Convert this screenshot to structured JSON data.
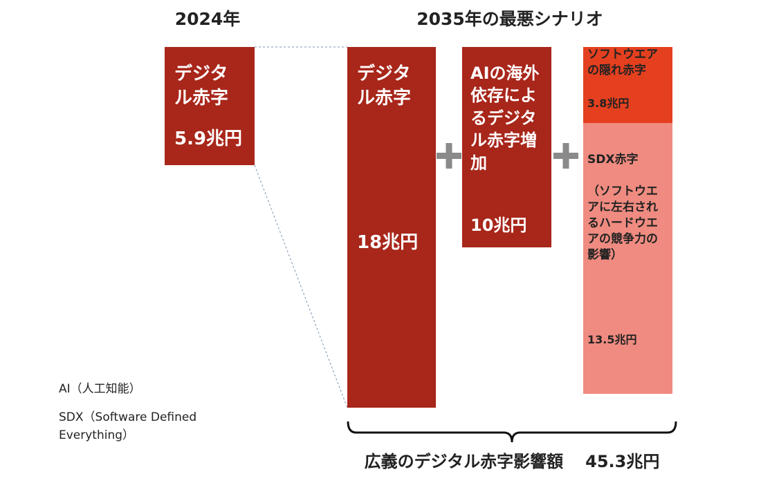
{
  "chart_data": {
    "type": "bar",
    "header_2024": "2024年",
    "header_scenario": "2035年の最悪シナリオ",
    "columns": [
      {
        "segments": [
          {
            "name": "デジタル赤字",
            "value": 5.9,
            "value_label": "5.9兆円",
            "color": "#a8261a"
          }
        ]
      },
      {
        "segments": [
          {
            "name": "デジタル赤字",
            "value": 18,
            "value_label": "18兆円",
            "color": "#a8261a"
          }
        ]
      },
      {
        "segments": [
          {
            "name": "AIの海外依存によるデジタル赤字増加",
            "value": 10,
            "value_label": "10兆円",
            "color": "#a8261a"
          }
        ]
      },
      {
        "segments": [
          {
            "name": "ソフトウエアの隠れ赤字",
            "value": 3.8,
            "value_label": "3.8兆円",
            "color": "#e4401f"
          },
          {
            "name": "SDX赤字",
            "description": "（ソフトウエアに左右されるハードウエアの競争力の影響）",
            "value": 13.5,
            "value_label": "13.5兆円",
            "color": "#ef8b80"
          }
        ]
      }
    ],
    "total_caption": "広義のデジタル赤字影響額",
    "total_label": "45.3兆円",
    "notes": [
      "AI（人工知能）",
      "SDX（Software Defined Everything）"
    ]
  }
}
